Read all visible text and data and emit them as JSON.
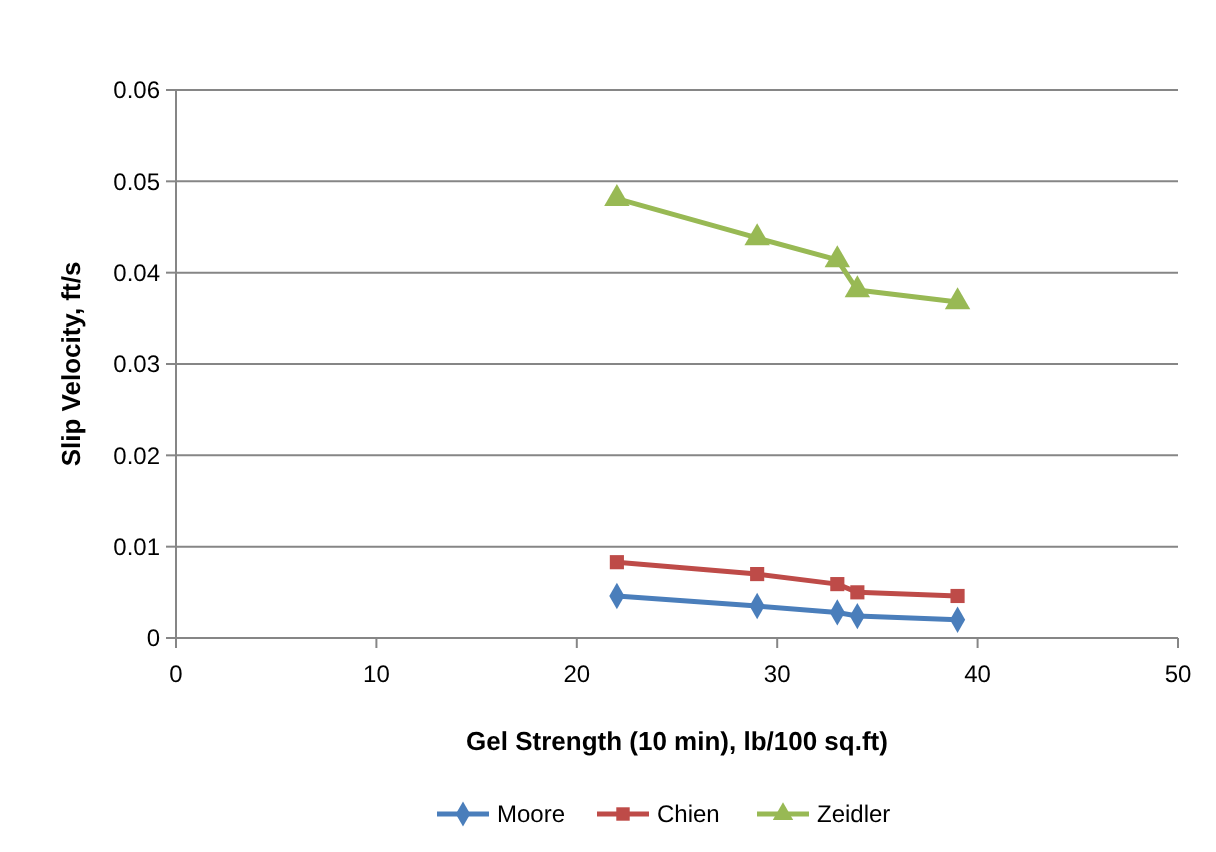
{
  "chart_data": {
    "type": "line",
    "xlabel": "Gel Strength (10 min), lb/100 sq.ft)",
    "ylabel": "Slip Velocity, ft/s",
    "x": [
      22,
      29,
      33,
      34,
      39
    ],
    "series": [
      {
        "name": "Moore",
        "color": "#4a7ebb",
        "marker": "diamond",
        "values": [
          0.0046,
          0.0035,
          0.0028,
          0.0024,
          0.002
        ]
      },
      {
        "name": "Chien",
        "color": "#be4b48",
        "marker": "square",
        "values": [
          0.0083,
          0.007,
          0.0059,
          0.005,
          0.0046
        ]
      },
      {
        "name": "Zeidler",
        "color": "#98b954",
        "marker": "triangle",
        "values": [
          0.0481,
          0.0438,
          0.0414,
          0.0381,
          0.0368
        ]
      }
    ],
    "xlim": [
      0,
      50
    ],
    "xticks": [
      0,
      10,
      20,
      30,
      40,
      50
    ],
    "ylim": [
      0,
      0.06
    ],
    "yticks": [
      {
        "value": 0,
        "label": "0"
      },
      {
        "value": 0.01,
        "label": "0.01"
      },
      {
        "value": 0.02,
        "label": "0.02"
      },
      {
        "value": 0.03,
        "label": "0.03"
      },
      {
        "value": 0.04,
        "label": "0.04"
      },
      {
        "value": 0.05,
        "label": "0.05"
      },
      {
        "value": 0.06,
        "label": "0.06"
      }
    ],
    "grid": "y",
    "legend": "bottom"
  }
}
